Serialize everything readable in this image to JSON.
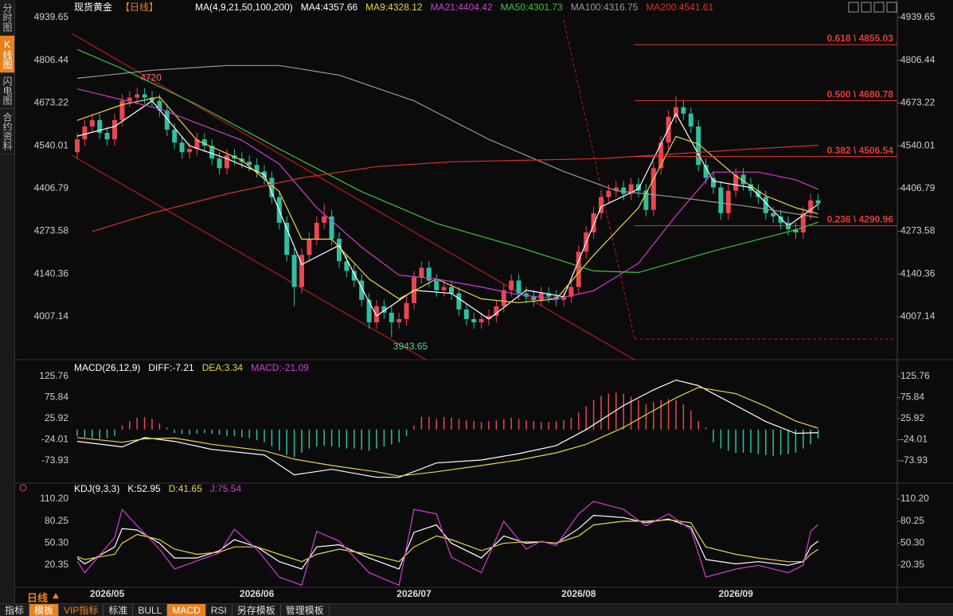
{
  "sidebar": [
    "分时图",
    "K线图",
    "闪电图",
    "合约资料"
  ],
  "period_label": "日线",
  "toolbar": [
    "指标",
    "模板",
    "VIP指标",
    "标准",
    "BULL",
    "MACD",
    "RSI",
    "另存模板",
    "管理模板"
  ],
  "chart_data": [
    {
      "type": "candlestick",
      "title": "现货黄金",
      "subtitle": "【日线】",
      "ma_label": "MA(4,9,21,50,100,200)",
      "up_color": "#e8474f",
      "down_color": "#2fbfa0",
      "ylim": [
        3878.3,
        4964.3
      ],
      "yticks": [
        4939.65,
        4806.44,
        4673.22,
        4540.01,
        4406.79,
        4273.58,
        4140.36,
        4007.14
      ],
      "categories": [
        null,
        null,
        null,
        null,
        "2026/05",
        null,
        null,
        null,
        null,
        null,
        null,
        null,
        null,
        null,
        null,
        null,
        null,
        null,
        null,
        null,
        null,
        null,
        null,
        null,
        "2026/06",
        null,
        null,
        null,
        null,
        null,
        null,
        null,
        null,
        null,
        null,
        null,
        null,
        null,
        null,
        null,
        null,
        null,
        null,
        null,
        null,
        "2026/07",
        null,
        null,
        null,
        null,
        null,
        null,
        null,
        null,
        null,
        null,
        null,
        null,
        null,
        null,
        null,
        null,
        null,
        null,
        null,
        null,
        null,
        "2026/08",
        null,
        null,
        null,
        null,
        null,
        null,
        null,
        null,
        null,
        null,
        null,
        null,
        null,
        null,
        null,
        null,
        null,
        null,
        null,
        null,
        "2026/09",
        null,
        null,
        null,
        null,
        null,
        null,
        null,
        null,
        null,
        null,
        null
      ],
      "open": [
        4520,
        4560,
        4600,
        4620,
        4580,
        4560,
        4620,
        4680,
        4690,
        4700,
        4690,
        4680,
        4650,
        4590,
        4550,
        4520,
        4530,
        4560,
        4540,
        4500,
        4470,
        4510,
        4500,
        4490,
        4480,
        4460,
        4440,
        4380,
        4300,
        4200,
        4100,
        4200,
        4250,
        4300,
        4320,
        4250,
        4180,
        4150,
        4120,
        4060,
        3990,
        4040,
        4020,
        3990,
        4000,
        4050,
        4130,
        4160,
        4120,
        4090,
        4100,
        4080,
        4030,
        4000,
        3990,
        4000,
        4010,
        4040,
        4090,
        4120,
        4080,
        4070,
        4060,
        4080,
        4070,
        4060,
        4070,
        4100,
        4210,
        4270,
        4330,
        4380,
        4400,
        4410,
        4390,
        4420,
        4400,
        4340,
        4470,
        4550,
        4630,
        4660,
        4640,
        4600,
        4480,
        4440,
        4410,
        4330,
        4400,
        4450,
        4420,
        4400,
        4380,
        4330,
        4320,
        4300,
        4280,
        4270,
        4330,
        4370
      ],
      "high": [
        4580,
        4620,
        4640,
        4640,
        4600,
        4640,
        4700,
        4710,
        4720,
        4720,
        4710,
        4700,
        4670,
        4610,
        4570,
        4550,
        4580,
        4580,
        4560,
        4520,
        4530,
        4530,
        4520,
        4510,
        4500,
        4480,
        4460,
        4400,
        4320,
        4220,
        4220,
        4270,
        4320,
        4360,
        4340,
        4270,
        4200,
        4170,
        4140,
        4080,
        4060,
        4060,
        4040,
        4020,
        4070,
        4150,
        4180,
        4180,
        4140,
        4120,
        4120,
        4100,
        4050,
        4020,
        4020,
        4030,
        4060,
        4110,
        4140,
        4140,
        4100,
        4090,
        4100,
        4100,
        4090,
        4090,
        4120,
        4230,
        4290,
        4350,
        4400,
        4420,
        4430,
        4430,
        4440,
        4440,
        4420,
        4490,
        4570,
        4650,
        4696.55,
        4680,
        4660,
        4620,
        4500,
        4460,
        4430,
        4420,
        4470,
        4470,
        4440,
        4420,
        4400,
        4350,
        4340,
        4320,
        4300,
        4350,
        4390,
        4390
      ],
      "low": [
        4500,
        4540,
        4580,
        4560,
        4540,
        4540,
        4600,
        4660,
        4670,
        4670,
        4660,
        4630,
        4570,
        4530,
        4500,
        4500,
        4510,
        4520,
        4480,
        4450,
        4450,
        4480,
        4470,
        4460,
        4440,
        4420,
        4360,
        4280,
        4180,
        4040,
        4080,
        4180,
        4230,
        4280,
        4230,
        4160,
        4130,
        4100,
        4040,
        3970,
        3970,
        4000,
        3943.65,
        3970,
        3980,
        4030,
        4110,
        4100,
        4070,
        4070,
        4060,
        4010,
        3980,
        3970,
        3970,
        3980,
        3990,
        4020,
        4070,
        4060,
        4050,
        4040,
        4040,
        4050,
        4040,
        4040,
        4050,
        4080,
        4190,
        4250,
        4310,
        4360,
        4380,
        4370,
        4370,
        4380,
        4320,
        4320,
        4450,
        4530,
        4610,
        4620,
        4580,
        4460,
        4420,
        4390,
        4310,
        4310,
        4380,
        4400,
        4380,
        4360,
        4310,
        4300,
        4280,
        4260,
        4250,
        4250,
        4310,
        4340
      ],
      "close": [
        4560,
        4600,
        4620,
        4580,
        4560,
        4620,
        4680,
        4690,
        4700,
        4690,
        4680,
        4650,
        4590,
        4550,
        4520,
        4530,
        4560,
        4540,
        4500,
        4470,
        4510,
        4500,
        4490,
        4480,
        4460,
        4440,
        4380,
        4300,
        4200,
        4100,
        4200,
        4250,
        4300,
        4320,
        4250,
        4180,
        4150,
        4120,
        4060,
        3990,
        4040,
        4020,
        3990,
        4000,
        4050,
        4130,
        4160,
        4120,
        4090,
        4100,
        4080,
        4030,
        4000,
        3990,
        4000,
        4010,
        4040,
        4090,
        4120,
        4080,
        4070,
        4060,
        4080,
        4070,
        4060,
        4070,
        4100,
        4210,
        4270,
        4330,
        4380,
        4400,
        4410,
        4390,
        4420,
        4400,
        4340,
        4470,
        4550,
        4630,
        4660,
        4640,
        4600,
        4480,
        4440,
        4410,
        4330,
        4400,
        4450,
        4420,
        4400,
        4380,
        4330,
        4320,
        4300,
        4280,
        4270,
        4330,
        4370,
        4360
      ],
      "series": [
        {
          "name": "MA4:4357.66",
          "color": "#ffffff",
          "x": [
            0,
            5,
            10,
            15,
            20,
            25,
            30,
            35,
            40,
            45,
            50,
            55,
            60,
            65,
            70,
            75,
            80,
            85,
            90,
            95,
            99
          ],
          "values": [
            4570,
            4600,
            4680,
            4540,
            4500,
            4450,
            4170,
            4230,
            4010,
            4090,
            4080,
            4000,
            4090,
            4070,
            4350,
            4405,
            4640,
            4430,
            4410,
            4290,
            4357.66
          ]
        },
        {
          "name": "MA9:4328.12",
          "color": "#e8d44d",
          "x": [
            0,
            6,
            11,
            16,
            22,
            27,
            30,
            34,
            39,
            43,
            48,
            54,
            59,
            64,
            69,
            75,
            80,
            83,
            88,
            92,
            96,
            99
          ],
          "values": [
            4619,
            4668,
            4692,
            4557,
            4495,
            4397,
            4249,
            4249,
            4125,
            4063,
            4125,
            4063,
            4051,
            4063,
            4199,
            4347,
            4569,
            4545,
            4446,
            4384,
            4347,
            4328.12
          ]
        },
        {
          "name": "MA21:4404.42",
          "color": "#d23cd6",
          "x": [
            0,
            11,
            22,
            27,
            32,
            38,
            43,
            48,
            54,
            59,
            64,
            69,
            75,
            80,
            85,
            91,
            96,
            99
          ],
          "values": [
            4717,
            4655,
            4557,
            4483,
            4347,
            4224,
            4137,
            4125,
            4100,
            4076,
            4063,
            4088,
            4174,
            4322,
            4458,
            4458,
            4434,
            4404.42
          ]
        },
        {
          "name": "MA50:4301.73",
          "color": "#3ac43a",
          "x": [
            0,
            6,
            16,
            27,
            38,
            48,
            59,
            69,
            75,
            85,
            96,
            99
          ],
          "values": [
            4840,
            4780,
            4668,
            4530,
            4397,
            4298,
            4224,
            4150,
            4145,
            4212,
            4278,
            4301.73
          ]
        },
        {
          "name": "MA100:4316.75",
          "color": "#9a9a9a",
          "x": [
            0,
            10,
            20,
            27,
            35,
            45,
            55,
            65,
            72,
            80,
            90,
            99
          ],
          "values": [
            4750,
            4775,
            4790,
            4790,
            4760,
            4680,
            4560,
            4460,
            4400,
            4380,
            4350,
            4316.75
          ]
        },
        {
          "name": "MA200:4541.61",
          "color": "#e03030",
          "x": [
            2,
            10,
            20,
            30,
            40,
            50,
            60,
            70,
            80,
            90,
            99
          ],
          "values": [
            4273,
            4330,
            4390,
            4440,
            4475,
            4490,
            4495,
            4500,
            4515,
            4530,
            4541.61
          ]
        }
      ],
      "level_color": "#e53935",
      "levels": [
        {
          "label": "0.618 \\ 4855.03",
          "value": 4855.03
        },
        {
          "label": "0.500 \\ 4680.78",
          "value": 4680.78
        },
        {
          "label": "0.382 \\ 4506.54",
          "value": 4506.54
        },
        {
          "label": "0.236 \\ 4290.96",
          "value": 4290.96
        }
      ]
    },
    {
      "type": "bar",
      "title": "MACD(26,12,9)",
      "up_color": "#e8474f",
      "down_color": "#2fbfa0",
      "ylim": [
        -122.9,
        154.0
      ],
      "yticks": [
        125.76,
        75.84,
        25.92,
        -24.01,
        -73.93
      ],
      "x": [
        0,
        6,
        9,
        13,
        18,
        25,
        29,
        34,
        40,
        43,
        48,
        54,
        59,
        64,
        68,
        73,
        77,
        80,
        83,
        88,
        92,
        96,
        99
      ],
      "series": [
        {
          "name": "DIFF:-7.21",
          "color": "#ffffff",
          "values": [
            -28,
            -41,
            -19,
            -28,
            -47,
            -60,
            -107,
            -94,
            -113,
            -113,
            -79,
            -72,
            -57,
            -38,
            0,
            57,
            94,
            117,
            104,
            57,
            19,
            -9,
            -7.21
          ]
        },
        {
          "name": "DEA:3.34",
          "color": "#e8d44d",
          "values": [
            -19,
            -30,
            -22,
            -20,
            -35,
            -50,
            -70,
            -85,
            -100,
            -110,
            -100,
            -85,
            -72,
            -55,
            -35,
            5,
            45,
            75,
            100,
            85,
            55,
            20,
            3.34
          ]
        }
      ],
      "histogram": {
        "name": "MACD:-21.09",
        "name_color": "#d23cd6",
        "values": [
          -15,
          -18,
          -20,
          -22,
          -20,
          -15,
          10,
          20,
          28,
          30,
          25,
          15,
          5,
          -8,
          -10,
          -12,
          -10,
          -8,
          -10,
          -12,
          -15,
          -15,
          -18,
          -20,
          -25,
          -30,
          -40,
          -50,
          -60,
          -65,
          -55,
          -45,
          -40,
          -38,
          -40,
          -42,
          -45,
          -45,
          -48,
          -50,
          -45,
          -40,
          -35,
          -30,
          -15,
          10,
          30,
          30,
          25,
          30,
          28,
          25,
          22,
          20,
          18,
          20,
          22,
          25,
          28,
          25,
          22,
          20,
          18,
          18,
          20,
          22,
          28,
          40,
          55,
          70,
          80,
          85,
          88,
          85,
          78,
          70,
          60,
          65,
          70,
          72,
          70,
          60,
          45,
          20,
          5,
          -30,
          -45,
          -50,
          -55,
          -55,
          -55,
          -58,
          -60,
          -62,
          -60,
          -58,
          -55,
          -45,
          -35,
          -21.09
        ]
      }
    },
    {
      "type": "line",
      "title": "KDJ(9,3,3)",
      "ylim": [
        -12.1,
        123.2
      ],
      "yticks": [
        {
          "value": 110.2,
          "label": "110.20"
        },
        80.25,
        {
          "value": 50.3,
          "label": "50.30"
        },
        20.35
      ],
      "x": [
        0,
        1,
        5,
        6,
        8,
        11,
        13,
        16,
        19,
        21,
        24,
        27,
        30,
        32,
        35,
        39,
        43,
        45,
        48,
        50,
        54,
        57,
        60,
        62,
        64,
        67,
        69,
        73,
        76,
        79,
        82,
        84,
        88,
        91,
        95,
        97,
        98,
        99
      ],
      "series": [
        {
          "name": "K:52.95",
          "color": "#ffffff",
          "values": [
            30,
            22,
            45,
            70,
            68,
            50,
            30,
            30,
            40,
            55,
            45,
            25,
            15,
            45,
            48,
            30,
            15,
            65,
            75,
            50,
            30,
            60,
            50,
            52,
            50,
            70,
            88,
            85,
            78,
            83,
            72,
            28,
            22,
            25,
            20,
            25,
            45,
            52.95
          ]
        },
        {
          "name": "D:41.65",
          "color": "#e8d44d",
          "values": [
            32,
            28,
            35,
            50,
            62,
            55,
            42,
            35,
            38,
            45,
            45,
            35,
            25,
            35,
            42,
            35,
            25,
            45,
            60,
            55,
            40,
            50,
            52,
            52,
            50,
            60,
            75,
            80,
            80,
            82,
            78,
            45,
            35,
            30,
            25,
            25,
            35,
            41.65
          ]
        },
        {
          "name": "J:75.54",
          "color": "#d23cd6",
          "values": [
            26,
            10,
            58,
            96,
            74,
            42,
            15,
            26,
            37,
            69,
            42,
            4,
            -7,
            66,
            53,
            10,
            -7,
            96,
            90,
            31,
            10,
            80,
            42,
            53,
            47,
            90,
            107,
            96,
            74,
            90,
            69,
            4,
            15,
            20,
            10,
            20,
            66,
            75.54
          ]
        }
      ]
    }
  ]
}
